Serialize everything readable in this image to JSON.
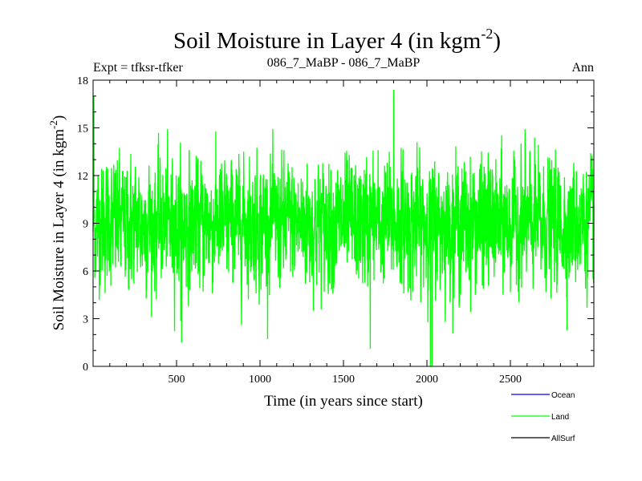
{
  "chart_data": {
    "type": "line",
    "title": "Soil Moisture in Layer 4 (in kgm",
    "title_sup": "-2",
    "title_close": ")",
    "subtitle_left": "Expt = tfksr-tfker",
    "subtitle_center": "086_7_MaBP - 086_7_MaBP",
    "subtitle_right": "Ann",
    "xlabel": "Time (in years since start)",
    "ylabel": "Soil Moisture in Layer 4 (in kgm",
    "ylabel_sup": "-2",
    "ylabel_close": ")",
    "xlim": [
      0,
      3000
    ],
    "ylim": [
      0,
      18
    ],
    "xticks": [
      500,
      1000,
      1500,
      2000,
      2500
    ],
    "yticks": [
      0,
      3,
      6,
      9,
      12,
      15,
      18
    ],
    "series": [
      {
        "name": "Ocean",
        "color": "#0000ff",
        "values": []
      },
      {
        "name": "Land",
        "color": "#00ff00",
        "mean": 9.0,
        "std": 1.9,
        "n_points": 3000,
        "notable_points": [
          {
            "x": 5,
            "y": 17.0
          },
          {
            "x": 530,
            "y": 1.5
          },
          {
            "x": 1660,
            "y": 1.1
          },
          {
            "x": 1800,
            "y": 17.4
          },
          {
            "x": 2020,
            "y": 0.0
          },
          {
            "x": 2030,
            "y": 0.0
          }
        ]
      },
      {
        "name": "AllSurf",
        "color": "#000000",
        "values": []
      }
    ],
    "legend_position": "bottom-right"
  }
}
